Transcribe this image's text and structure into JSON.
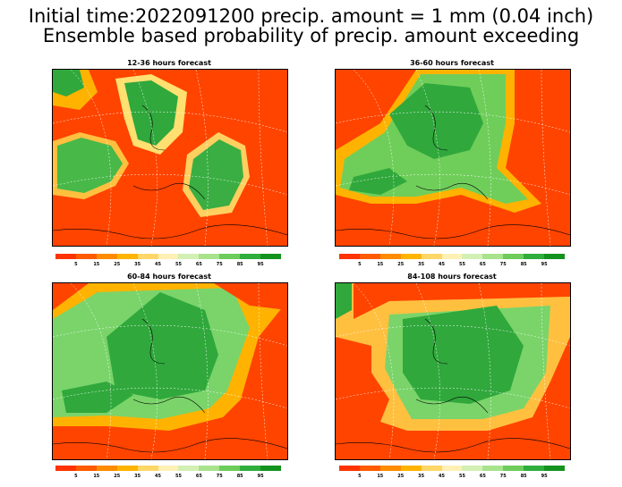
{
  "title_line1": "Initial time:2022091200 precip. amount = 1 mm (0.04 inch)",
  "title_line2": "Ensemble based probability of precip. amount exceeding",
  "panels": [
    {
      "label": "12-36 hours forecast"
    },
    {
      "label": "36-60 hours forecast"
    },
    {
      "label": "60-84 hours forecast"
    },
    {
      "label": "84-108 hours forecast"
    }
  ],
  "colorbar": {
    "labels": [
      "5",
      "15",
      "25",
      "35",
      "45",
      "55",
      "65",
      "75",
      "85",
      "95"
    ],
    "colors": [
      "#ff3300",
      "#ff5a00",
      "#ff8c00",
      "#ffb400",
      "#ffd766",
      "#fff0b4",
      "#d2f0b4",
      "#a8e38c",
      "#6dcc5a",
      "#2fae3c",
      "#13931e"
    ]
  },
  "colors": {
    "low_prob": "#ff4400",
    "mid_prob": "#ffb300",
    "high_prob": "#30a83c",
    "coast": "#000000",
    "grid": "#ffffff"
  }
}
